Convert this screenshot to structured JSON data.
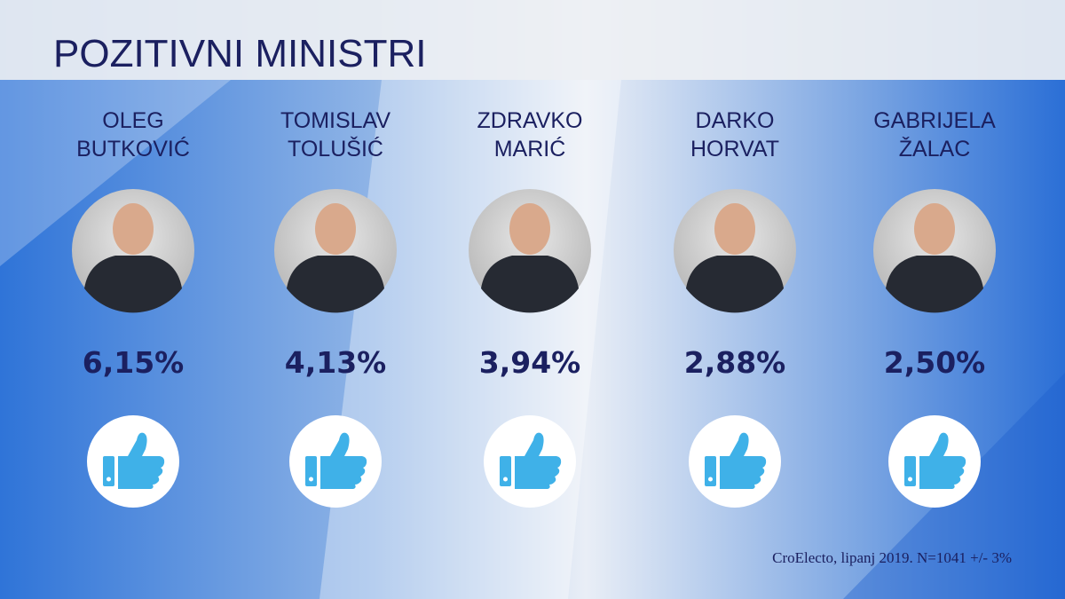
{
  "title": "POZITIVNI MINISTRI",
  "ministers": [
    {
      "name": [
        "OLEG",
        "BUTKOVIĆ"
      ],
      "percent": "6,15%"
    },
    {
      "name": [
        "TOMISLAV",
        "TOLUŠIĆ"
      ],
      "percent": "4,13%"
    },
    {
      "name": [
        "ZDRAVKO",
        "MARIĆ"
      ],
      "percent": "3,94%"
    },
    {
      "name": [
        "DARKO",
        "HORVAT"
      ],
      "percent": "2,88%"
    },
    {
      "name": [
        "GABRIJELA",
        "ŽALAC"
      ],
      "percent": "2,50%"
    }
  ],
  "source": "CroElecto, lipanj 2019. N=1041 +/- 3%"
}
